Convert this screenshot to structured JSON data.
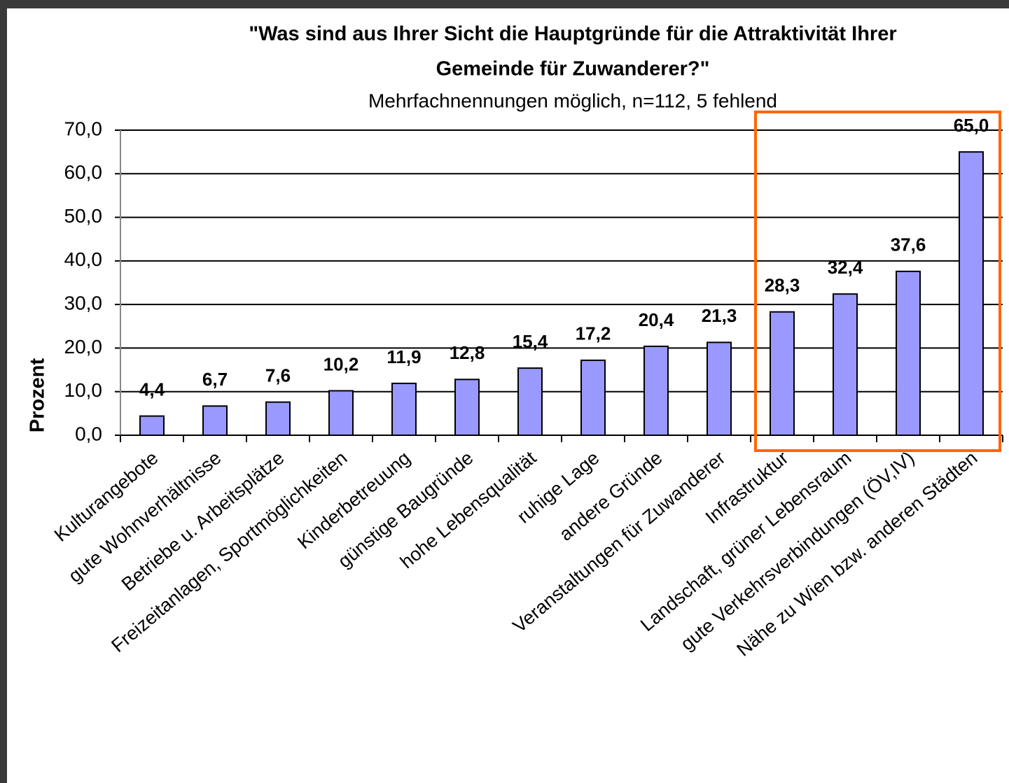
{
  "chart_data": {
    "type": "bar",
    "title": [
      "\"Was sind aus Ihrer Sicht die Hauptgründe für die Attraktivität Ihrer",
      "Gemeinde für Zuwanderer?\""
    ],
    "subtitle": "Mehrfachnennungen möglich, n=112, 5 fehlend",
    "y_label": "Prozent",
    "categories": [
      "Kulturangebote",
      "gute Wohnverhältnisse",
      "Betriebe u. Arbeitsplätze",
      "Freizeitanlagen, Sportmöglichkeiten",
      "Kinderbetreuung",
      "günstige Baugründe",
      "hohe Lebensqualität",
      "ruhige Lage",
      "andere Gründe",
      "Veranstaltungen für Zuwanderer",
      "Infrastruktur",
      "Landschaft, grüner Lebensraum",
      "gute Verkehrsverbindungen (ÖV,IV)",
      "Nähe zu Wien bzw. anderen Städten"
    ],
    "values": [
      4.4,
      6.7,
      7.6,
      10.2,
      11.9,
      12.8,
      15.4,
      17.2,
      20.4,
      21.3,
      28.3,
      32.4,
      37.6,
      65.0
    ],
    "value_labels": [
      "4,4",
      "6,7",
      "7,6",
      "10,2",
      "11,9",
      "12,8",
      "15,4",
      "17,2",
      "20,4",
      "21,3",
      "28,3",
      "32,4",
      "37,6",
      "65,0"
    ],
    "color": "#9999ff",
    "ylim": [
      0,
      70
    ],
    "yticks": [
      {
        "value": 0,
        "label": "0,0"
      },
      {
        "value": 10,
        "label": "10,0"
      },
      {
        "value": 20,
        "label": "20,0"
      },
      {
        "value": 30,
        "label": "30,0"
      },
      {
        "value": 40,
        "label": "40,0"
      },
      {
        "value": 50,
        "label": "50,0"
      },
      {
        "value": 60,
        "label": "60,0"
      },
      {
        "value": 70,
        "label": "70,0"
      }
    ],
    "grid": true
  }
}
